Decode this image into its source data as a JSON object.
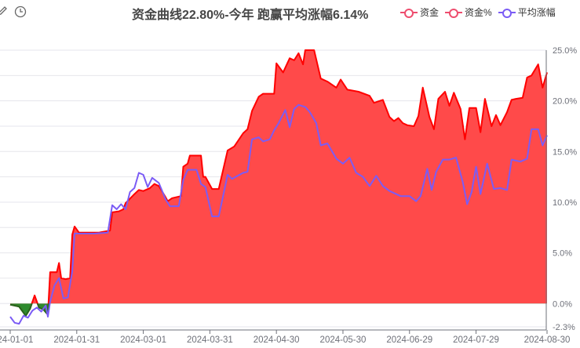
{
  "toolbar": {
    "left_icon": "pencil-icon",
    "right_icon": "clock-icon"
  },
  "chart_data": {
    "type": "area",
    "title": "资金曲线22.80%-今年 跑赢平均涨幅6.14%",
    "xlabel": "",
    "ylabel": "",
    "x_ticks": [
      "2024-01-01",
      "2024-01-31",
      "2024-03-01",
      "2024-03-31",
      "2024-04-30",
      "2024-05-30",
      "2024-06-29",
      "2024-07-29",
      "2024-08-30"
    ],
    "y_ticks": [
      "25.0%",
      "20.0%",
      "15.0%",
      "10.0%",
      "5.0%",
      "0.0%",
      "-2.3%"
    ],
    "ylim": [
      -2.3,
      25.0
    ],
    "y_axis_position": "right",
    "grid": true,
    "legend_position": "top-right",
    "colors": {
      "capital": "#ff0000",
      "capital_pct": "#ee4d6e",
      "average": "#7b5cf5",
      "positive_fill": "#ff4a4a",
      "negative_fill": "#2e8b2e"
    },
    "series": [
      {
        "name": "资金",
        "color": "#ff0000",
        "points": [
          [
            "2024-01-01",
            -0.1
          ],
          [
            "2024-01-05",
            -0.3
          ],
          [
            "2024-01-08",
            -1.2
          ],
          [
            "2024-01-10",
            -0.5
          ],
          [
            "2024-01-12",
            0.8
          ],
          [
            "2024-01-14",
            -0.4
          ],
          [
            "2024-01-16",
            -0.6
          ],
          [
            "2024-01-18",
            -1.1
          ],
          [
            "2024-01-19",
            3.1
          ],
          [
            "2024-01-22",
            3.1
          ],
          [
            "2024-01-23",
            4.0
          ],
          [
            "2024-01-24",
            2.5
          ],
          [
            "2024-01-26",
            2.4
          ],
          [
            "2024-01-28",
            2.5
          ],
          [
            "2024-01-29",
            6.8
          ],
          [
            "2024-01-30",
            7.6
          ],
          [
            "2024-02-01",
            7.0
          ],
          [
            "2024-02-05",
            7.0
          ],
          [
            "2024-02-10",
            7.0
          ],
          [
            "2024-02-15",
            7.2
          ],
          [
            "2024-02-16",
            9.0
          ],
          [
            "2024-02-19",
            9.1
          ],
          [
            "2024-02-21",
            9.3
          ],
          [
            "2024-02-22",
            9.9
          ],
          [
            "2024-02-26",
            10.8
          ],
          [
            "2024-02-28",
            11.2
          ],
          [
            "2024-03-01",
            11.1
          ],
          [
            "2024-03-04",
            11.4
          ],
          [
            "2024-03-06",
            11.8
          ],
          [
            "2024-03-08",
            11.6
          ],
          [
            "2024-03-11",
            10.5
          ],
          [
            "2024-03-12",
            10.1
          ],
          [
            "2024-03-14",
            10.4
          ],
          [
            "2024-03-18",
            10.6
          ],
          [
            "2024-03-19",
            13.5
          ],
          [
            "2024-03-21",
            13.8
          ],
          [
            "2024-03-22",
            14.6
          ],
          [
            "2024-03-27",
            14.6
          ],
          [
            "2024-03-28",
            12.5
          ],
          [
            "2024-03-29",
            12.5
          ],
          [
            "2024-04-01",
            11.3
          ],
          [
            "2024-04-04",
            11.3
          ],
          [
            "2024-04-08",
            15.1
          ],
          [
            "2024-04-11",
            15.5
          ],
          [
            "2024-04-15",
            16.8
          ],
          [
            "2024-04-17",
            17.2
          ],
          [
            "2024-04-19",
            19.0
          ],
          [
            "2024-04-22",
            20.4
          ],
          [
            "2024-04-24",
            20.7
          ],
          [
            "2024-04-29",
            20.7
          ],
          [
            "2024-04-30",
            23.7
          ],
          [
            "2024-05-03",
            22.8
          ],
          [
            "2024-05-06",
            24.2
          ],
          [
            "2024-05-08",
            24.0
          ],
          [
            "2024-05-10",
            24.7
          ],
          [
            "2024-05-12",
            23.6
          ],
          [
            "2024-05-13",
            25.0
          ],
          [
            "2024-05-17",
            25.0
          ],
          [
            "2024-05-20",
            22.2
          ],
          [
            "2024-05-23",
            21.9
          ],
          [
            "2024-05-27",
            21.3
          ],
          [
            "2024-05-29",
            22.1
          ],
          [
            "2024-06-01",
            21.1
          ],
          [
            "2024-06-06",
            20.9
          ],
          [
            "2024-06-11",
            20.5
          ],
          [
            "2024-06-13",
            19.8
          ],
          [
            "2024-06-17",
            20.1
          ],
          [
            "2024-06-20",
            18.4
          ],
          [
            "2024-06-22",
            18.0
          ],
          [
            "2024-06-24",
            18.3
          ],
          [
            "2024-06-26",
            17.8
          ],
          [
            "2024-06-28",
            17.6
          ],
          [
            "2024-07-01",
            17.5
          ],
          [
            "2024-07-03",
            18.5
          ],
          [
            "2024-07-05",
            21.3
          ],
          [
            "2024-07-08",
            18.4
          ],
          [
            "2024-07-10",
            17.2
          ],
          [
            "2024-07-12",
            20.2
          ],
          [
            "2024-07-15",
            20.9
          ],
          [
            "2024-07-17",
            19.5
          ],
          [
            "2024-07-19",
            20.8
          ],
          [
            "2024-07-22",
            19.2
          ],
          [
            "2024-07-24",
            16.2
          ],
          [
            "2024-07-26",
            19.3
          ],
          [
            "2024-07-29",
            19.3
          ],
          [
            "2024-07-31",
            16.9
          ],
          [
            "2024-08-02",
            20.2
          ],
          [
            "2024-08-05",
            17.5
          ],
          [
            "2024-08-07",
            18.6
          ],
          [
            "2024-08-09",
            17.6
          ],
          [
            "2024-08-12",
            18.9
          ],
          [
            "2024-08-14",
            20.1
          ],
          [
            "2024-08-16",
            20.2
          ],
          [
            "2024-08-19",
            20.3
          ],
          [
            "2024-08-21",
            22.3
          ],
          [
            "2024-08-23",
            22.5
          ],
          [
            "2024-08-26",
            23.6
          ],
          [
            "2024-08-28",
            21.3
          ],
          [
            "2024-08-30",
            22.8
          ]
        ]
      },
      {
        "name": "资金%",
        "color": "#ee4d6e",
        "points": []
      },
      {
        "name": "平均涨幅",
        "color": "#7b5cf5",
        "points": [
          [
            "2024-01-01",
            -1.3
          ],
          [
            "2024-01-03",
            -1.9
          ],
          [
            "2024-01-05",
            -2.0
          ],
          [
            "2024-01-07",
            -1.2
          ],
          [
            "2024-01-09",
            -1.4
          ],
          [
            "2024-01-11",
            -0.7
          ],
          [
            "2024-01-13",
            -0.4
          ],
          [
            "2024-01-15",
            -0.8
          ],
          [
            "2024-01-17",
            -0.2
          ],
          [
            "2024-01-18",
            -1.3
          ],
          [
            "2024-01-19",
            0.2
          ],
          [
            "2024-01-21",
            1.8
          ],
          [
            "2024-01-23",
            2.5
          ],
          [
            "2024-01-25",
            0.5
          ],
          [
            "2024-01-27",
            0.6
          ],
          [
            "2024-01-29",
            3.2
          ],
          [
            "2024-01-30",
            6.9
          ],
          [
            "2024-02-02",
            6.9
          ],
          [
            "2024-02-08",
            6.9
          ],
          [
            "2024-02-14",
            7.0
          ],
          [
            "2024-02-16",
            9.7
          ],
          [
            "2024-02-18",
            9.3
          ],
          [
            "2024-02-20",
            9.8
          ],
          [
            "2024-02-22",
            9.3
          ],
          [
            "2024-02-24",
            11.0
          ],
          [
            "2024-02-26",
            11.4
          ],
          [
            "2024-02-28",
            12.9
          ],
          [
            "2024-03-01",
            12.7
          ],
          [
            "2024-03-03",
            11.5
          ],
          [
            "2024-03-05",
            12.4
          ],
          [
            "2024-03-08",
            11.9
          ],
          [
            "2024-03-11",
            10.3
          ],
          [
            "2024-03-13",
            9.6
          ],
          [
            "2024-03-17",
            9.6
          ],
          [
            "2024-03-19",
            12.2
          ],
          [
            "2024-03-21",
            13.2
          ],
          [
            "2024-03-25",
            13.2
          ],
          [
            "2024-03-27",
            11.8
          ],
          [
            "2024-03-29",
            11.5
          ],
          [
            "2024-04-01",
            8.6
          ],
          [
            "2024-04-04",
            8.6
          ],
          [
            "2024-04-08",
            12.7
          ],
          [
            "2024-04-10",
            12.3
          ],
          [
            "2024-04-15",
            12.9
          ],
          [
            "2024-04-17",
            13.0
          ],
          [
            "2024-04-19",
            16.2
          ],
          [
            "2024-04-22",
            16.4
          ],
          [
            "2024-04-24",
            16.0
          ],
          [
            "2024-04-27",
            16.2
          ],
          [
            "2024-04-29",
            17.1
          ],
          [
            "2024-05-01",
            17.8
          ],
          [
            "2024-05-04",
            19.1
          ],
          [
            "2024-05-06",
            17.4
          ],
          [
            "2024-05-08",
            19.2
          ],
          [
            "2024-05-10",
            19.6
          ],
          [
            "2024-05-13",
            19.4
          ],
          [
            "2024-05-15",
            18.9
          ],
          [
            "2024-05-18",
            17.8
          ],
          [
            "2024-05-20",
            15.6
          ],
          [
            "2024-05-23",
            15.8
          ],
          [
            "2024-05-27",
            14.3
          ],
          [
            "2024-05-30",
            13.8
          ],
          [
            "2024-06-02",
            14.4
          ],
          [
            "2024-06-05",
            12.9
          ],
          [
            "2024-06-08",
            12.5
          ],
          [
            "2024-06-11",
            11.6
          ],
          [
            "2024-06-14",
            12.6
          ],
          [
            "2024-06-17",
            11.6
          ],
          [
            "2024-06-20",
            11.1
          ],
          [
            "2024-06-25",
            10.6
          ],
          [
            "2024-06-29",
            10.6
          ],
          [
            "2024-07-02",
            10.1
          ],
          [
            "2024-07-04",
            10.6
          ],
          [
            "2024-07-07",
            13.3
          ],
          [
            "2024-07-09",
            11.2
          ],
          [
            "2024-07-11",
            13.0
          ],
          [
            "2024-07-14",
            14.2
          ],
          [
            "2024-07-17",
            14.2
          ],
          [
            "2024-07-20",
            14.4
          ],
          [
            "2024-07-23",
            12.0
          ],
          [
            "2024-07-25",
            9.8
          ],
          [
            "2024-07-27",
            11.0
          ],
          [
            "2024-07-29",
            13.5
          ],
          [
            "2024-07-31",
            10.8
          ],
          [
            "2024-08-03",
            13.8
          ],
          [
            "2024-08-06",
            11.3
          ],
          [
            "2024-08-09",
            11.4
          ],
          [
            "2024-08-12",
            11.2
          ],
          [
            "2024-08-14",
            14.2
          ],
          [
            "2024-08-18",
            14.0
          ],
          [
            "2024-08-21",
            14.3
          ],
          [
            "2024-08-23",
            17.2
          ],
          [
            "2024-08-26",
            17.2
          ],
          [
            "2024-08-28",
            15.6
          ],
          [
            "2024-08-30",
            16.6
          ]
        ]
      }
    ]
  }
}
